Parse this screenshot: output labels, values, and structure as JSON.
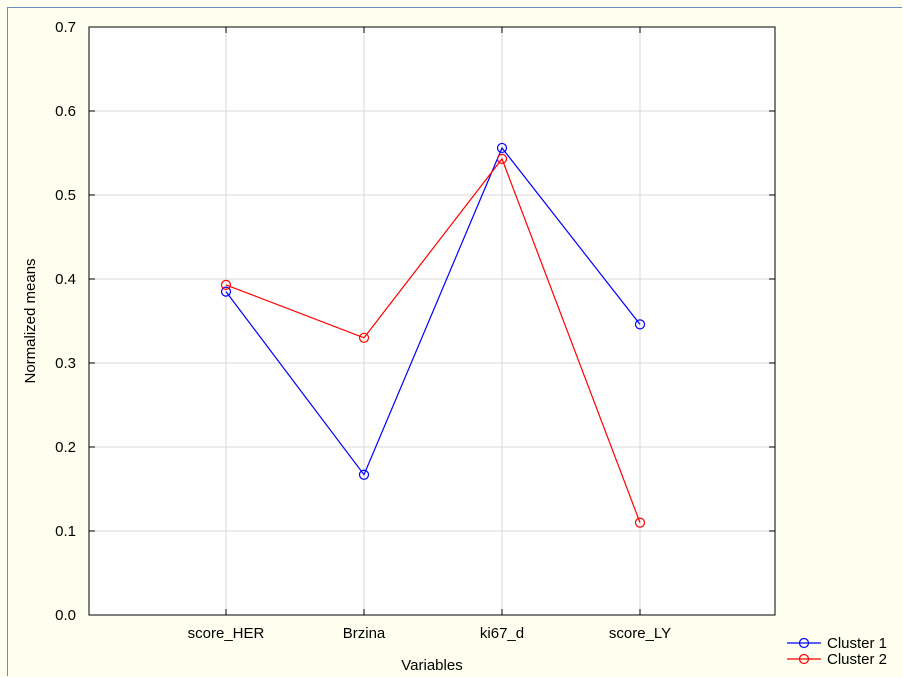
{
  "chart_data": {
    "type": "line",
    "title": "",
    "xlabel": "Variables",
    "ylabel": "Normalized means",
    "categories": [
      "score_HER",
      "Brzina",
      "ki67_d",
      "score_LY"
    ],
    "ylim": [
      0.0,
      0.7
    ],
    "yticks": [
      "0.0",
      "0.1",
      "0.2",
      "0.3",
      "0.4",
      "0.5",
      "0.6",
      "0.7"
    ],
    "grid": true,
    "legend_position": "bottom-right",
    "series": [
      {
        "name": "Cluster 1",
        "color": "#0000ff",
        "values": [
          0.385,
          0.167,
          0.556,
          0.346
        ]
      },
      {
        "name": "Cluster 2",
        "color": "#ff0000",
        "values": [
          0.393,
          0.33,
          0.543,
          0.11
        ]
      }
    ]
  }
}
